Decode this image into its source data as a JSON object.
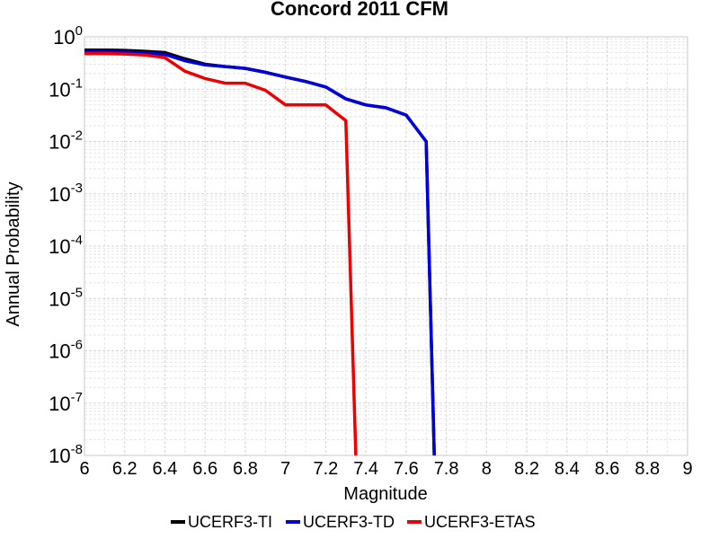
{
  "chart_data": {
    "type": "line",
    "title": "Concord 2011 CFM",
    "xlabel": "Magnitude",
    "ylabel": "Annual Probability",
    "xlim": [
      6,
      9
    ],
    "ylim": [
      1e-08,
      1
    ],
    "yscale": "log",
    "grid": true,
    "legend_position": "bottom-center",
    "xticks": [
      "6",
      "6.2",
      "6.4",
      "6.6",
      "6.8",
      "7",
      "7.2",
      "7.4",
      "7.6",
      "7.8",
      "8",
      "8.2",
      "8.4",
      "8.6",
      "8.8",
      "9"
    ],
    "yticks": [
      {
        "base": "10",
        "exp": "0"
      },
      {
        "base": "10",
        "exp": "-1"
      },
      {
        "base": "10",
        "exp": "-2"
      },
      {
        "base": "10",
        "exp": "-3"
      },
      {
        "base": "10",
        "exp": "-4"
      },
      {
        "base": "10",
        "exp": "-5"
      },
      {
        "base": "10",
        "exp": "-6"
      },
      {
        "base": "10",
        "exp": "-7"
      },
      {
        "base": "10",
        "exp": "-8"
      }
    ],
    "series": [
      {
        "name": "UCERF3-TI",
        "color": "#000000",
        "x": [
          6.0,
          6.1,
          6.2,
          6.3,
          6.4,
          6.5,
          6.6,
          6.7,
          6.8,
          6.9,
          7.0,
          7.1,
          7.2,
          7.3,
          7.4,
          7.5,
          7.6,
          7.7,
          7.74
        ],
        "y": [
          0.56,
          0.56,
          0.55,
          0.53,
          0.5,
          0.38,
          0.3,
          0.27,
          0.25,
          0.21,
          0.17,
          0.14,
          0.11,
          0.065,
          0.05,
          0.044,
          0.032,
          0.01,
          1e-08
        ]
      },
      {
        "name": "UCERF3-TD",
        "color": "#0000dd",
        "x": [
          6.0,
          6.1,
          6.2,
          6.3,
          6.4,
          6.5,
          6.6,
          6.7,
          6.8,
          6.9,
          7.0,
          7.1,
          7.2,
          7.3,
          7.4,
          7.5,
          7.6,
          7.7,
          7.74
        ],
        "y": [
          0.52,
          0.52,
          0.51,
          0.49,
          0.46,
          0.35,
          0.29,
          0.27,
          0.25,
          0.21,
          0.17,
          0.14,
          0.11,
          0.065,
          0.05,
          0.044,
          0.032,
          0.01,
          1e-08
        ]
      },
      {
        "name": "UCERF3-ETAS",
        "color": "#ee0000",
        "x": [
          6.0,
          6.1,
          6.2,
          6.3,
          6.4,
          6.5,
          6.6,
          6.7,
          6.8,
          6.9,
          7.0,
          7.1,
          7.2,
          7.3,
          7.35
        ],
        "y": [
          0.48,
          0.48,
          0.47,
          0.45,
          0.4,
          0.22,
          0.16,
          0.13,
          0.13,
          0.095,
          0.05,
          0.05,
          0.05,
          0.025,
          1e-08
        ]
      }
    ]
  }
}
